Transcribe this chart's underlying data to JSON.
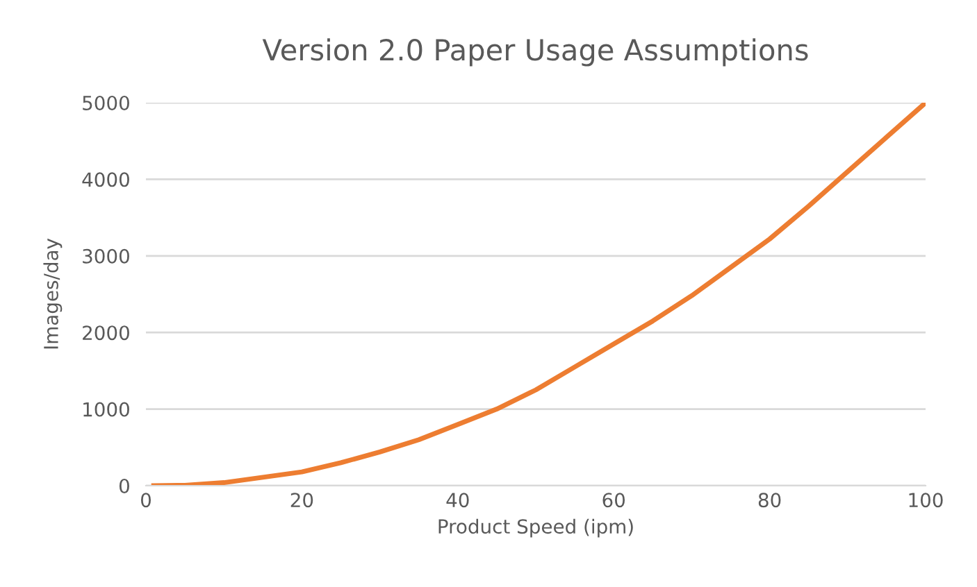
{
  "chart_data": {
    "type": "line",
    "title": "Version 2.0 Paper Usage Assumptions",
    "xlabel": "Product Speed (ipm)",
    "ylabel": "Images/day",
    "series": [
      {
        "color": "#ed7d31",
        "x": [
          1,
          5,
          10,
          15,
          20,
          25,
          30,
          35,
          40,
          45,
          50,
          55,
          60,
          65,
          70,
          75,
          80,
          85,
          90,
          95,
          100
        ],
        "values": [
          0,
          5,
          40,
          110,
          180,
          300,
          440,
          600,
          800,
          1000,
          1250,
          1550,
          1850,
          2150,
          2480,
          2850,
          3220,
          3650,
          4100,
          4550,
          5000
        ]
      }
    ],
    "xlim": [
      0,
      100
    ],
    "xticks": [
      0,
      20,
      40,
      60,
      80,
      100
    ],
    "ylim": [
      0,
      5000
    ],
    "yticks": [
      0,
      1000,
      2000,
      3000,
      4000,
      5000
    ],
    "grid": "y",
    "legend": false,
    "marker": "none",
    "line_style": "solid"
  }
}
